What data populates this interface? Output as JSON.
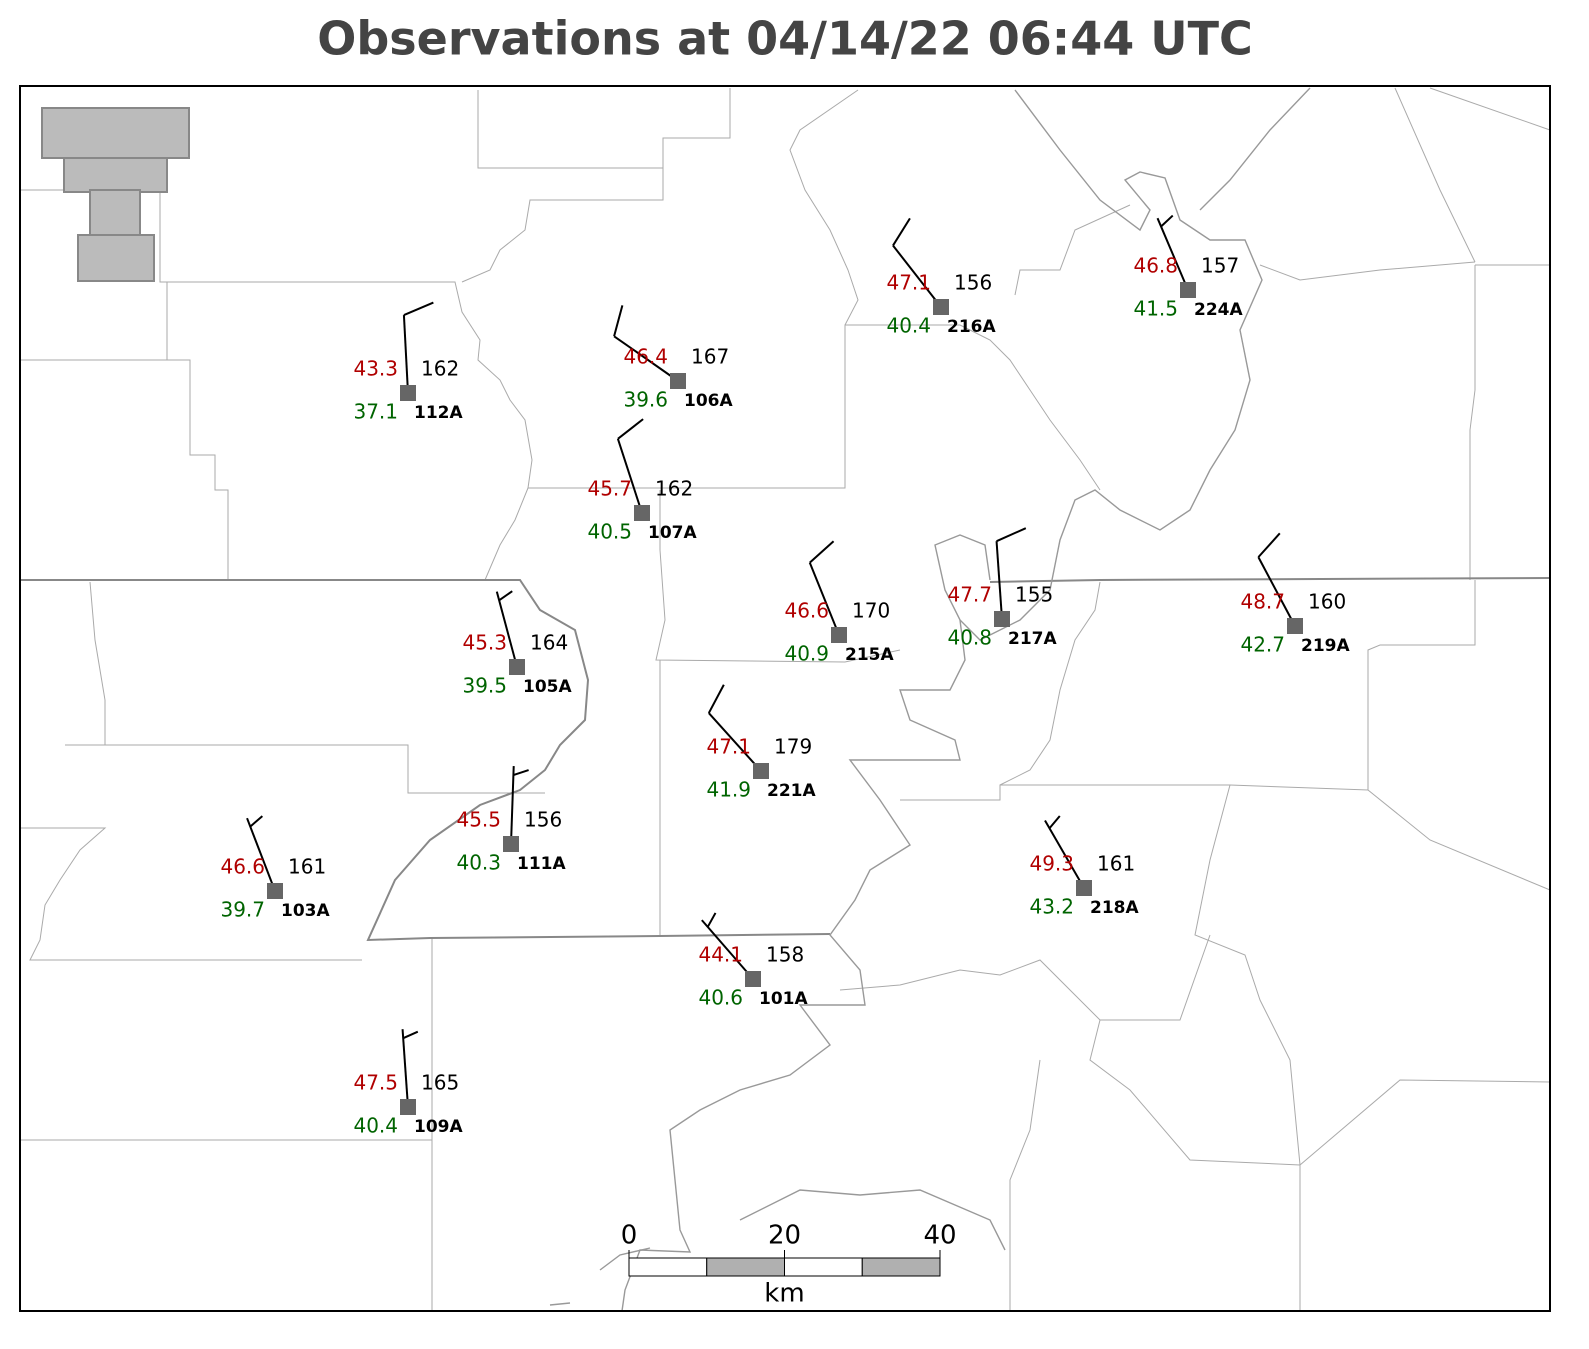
{
  "title": "Observations at 04/14/22 06:44 UTC",
  "stations": [
    {
      "id": "112A",
      "temperature": 43.3,
      "dewpoint": 37.1,
      "pressure": 162,
      "wind_direction": 357,
      "wind_speed": 10
    },
    {
      "id": "106A",
      "temperature": 46.4,
      "dewpoint": 39.6,
      "pressure": 167,
      "wind_direction": 305,
      "wind_speed": 10
    },
    {
      "id": "107A",
      "temperature": 45.7,
      "dewpoint": 40.5,
      "pressure": 162,
      "wind_direction": 342,
      "wind_speed": 10
    },
    {
      "id": "216A",
      "temperature": 47.1,
      "dewpoint": 40.4,
      "pressure": 156,
      "wind_direction": 322,
      "wind_speed": 10
    },
    {
      "id": "224A",
      "temperature": 46.8,
      "dewpoint": 41.5,
      "pressure": 157,
      "wind_direction": 337,
      "wind_speed": 5
    },
    {
      "id": "215A",
      "temperature": 46.6,
      "dewpoint": 40.9,
      "pressure": 170,
      "wind_direction": 338,
      "wind_speed": 10
    },
    {
      "id": "217A",
      "temperature": 47.7,
      "dewpoint": 40.8,
      "pressure": 155,
      "wind_direction": 356,
      "wind_speed": 10
    },
    {
      "id": "219A",
      "temperature": 48.7,
      "dewpoint": 42.7,
      "pressure": 160,
      "wind_direction": 332,
      "wind_speed": 10
    },
    {
      "id": "105A",
      "temperature": 45.3,
      "dewpoint": 39.5,
      "pressure": 164,
      "wind_direction": 345,
      "wind_speed": 5
    },
    {
      "id": "221A",
      "temperature": 47.1,
      "dewpoint": 41.9,
      "pressure": 179,
      "wind_direction": 318,
      "wind_speed": 10
    },
    {
      "id": "111A",
      "temperature": 45.5,
      "dewpoint": 40.3,
      "pressure": 156,
      "wind_direction": 2,
      "wind_speed": 5
    },
    {
      "id": "103A",
      "temperature": 46.6,
      "dewpoint": 39.7,
      "pressure": 161,
      "wind_direction": 339,
      "wind_speed": 5
    },
    {
      "id": "218A",
      "temperature": 49.3,
      "dewpoint": 43.2,
      "pressure": 161,
      "wind_direction": 330,
      "wind_speed": 5
    },
    {
      "id": "101A",
      "temperature": 44.1,
      "dewpoint": 40.6,
      "pressure": 158,
      "wind_direction": 319,
      "wind_speed": 5
    },
    {
      "id": "109A",
      "temperature": 47.5,
      "dewpoint": 40.4,
      "pressure": 165,
      "wind_direction": 356,
      "wind_speed": 5
    }
  ],
  "scale_bar": {
    "ticks": [
      0,
      20,
      40
    ],
    "unit": "km"
  }
}
